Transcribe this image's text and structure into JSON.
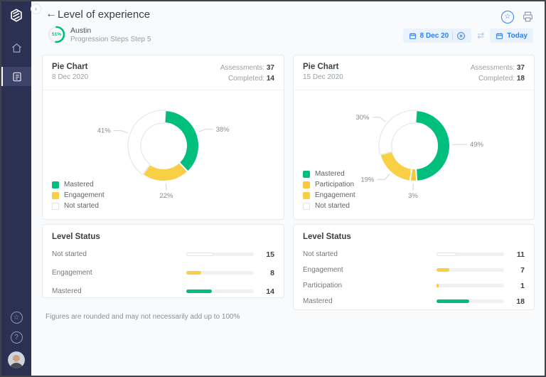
{
  "colors": {
    "green": "#00BF7C",
    "engagement_yellow": "#F9CF45",
    "participation_yellow": "#FAC83E",
    "accent_blue": "#2F80ED",
    "sidebar_bg": "#2B3152",
    "not_started_outline": "#E2E2E8"
  },
  "icons": {
    "back": "←",
    "expand": "›",
    "swap": "⇄",
    "star": "☆",
    "help": "?"
  },
  "header": {
    "title": "Level of experience",
    "progress_percent": "51%",
    "student_name": "Austin",
    "program": "Progression Steps Step 5"
  },
  "toolbar": {
    "from_date": "8 Dec 20",
    "to_date": "Today"
  },
  "strings": {
    "assessments_label": "Assessments:",
    "completed_label": "Completed:"
  },
  "chart_data": [
    {
      "type": "pie",
      "title": "Pie Chart",
      "date": "8 Dec 2020",
      "assessments": "37",
      "completed": "14",
      "legend_position": "bottom-left",
      "segments": [
        {
          "label": "Mastered",
          "pct": 38,
          "color": "#00BF7C"
        },
        {
          "label": "Engagement",
          "pct": 22,
          "color": "#F9CF45"
        },
        {
          "label": "Not started",
          "pct": 41,
          "color": "#FFFFFF",
          "outline": true
        }
      ]
    },
    {
      "type": "pie",
      "title": "Pie Chart",
      "date": "15 Dec 2020",
      "assessments": "37",
      "completed": "18",
      "legend_position": "bottom-left",
      "segments": [
        {
          "label": "Mastered",
          "pct": 49,
          "color": "#00BF7C"
        },
        {
          "label": "Participation",
          "pct": 3,
          "color": "#FAC83E"
        },
        {
          "label": "Engagement",
          "pct": 19,
          "color": "#F9CF45"
        },
        {
          "label": "Not started",
          "pct": 30,
          "color": "#FFFFFF",
          "outline": true
        }
      ]
    },
    {
      "type": "bar",
      "title": "Level Status",
      "max": 37,
      "rows": [
        {
          "label": "Not started",
          "value": 15,
          "color": "#FFFFFF",
          "outline": true
        },
        {
          "label": "Engagement",
          "value": 8,
          "color": "#F9CF45"
        },
        {
          "label": "Mastered",
          "value": 14,
          "color": "#00BF7C"
        }
      ]
    },
    {
      "type": "bar",
      "title": "Level Status",
      "max": 37,
      "rows": [
        {
          "label": "Not started",
          "value": 11,
          "color": "#FFFFFF",
          "outline": true
        },
        {
          "label": "Engagement",
          "value": 7,
          "color": "#F9CF45"
        },
        {
          "label": "Participation",
          "value": 1,
          "color": "#FAC83E"
        },
        {
          "label": "Mastered",
          "value": 18,
          "color": "#00BF7C"
        }
      ]
    }
  ],
  "footer_note": "Figures are rounded and may not necessarily add up to 100%"
}
